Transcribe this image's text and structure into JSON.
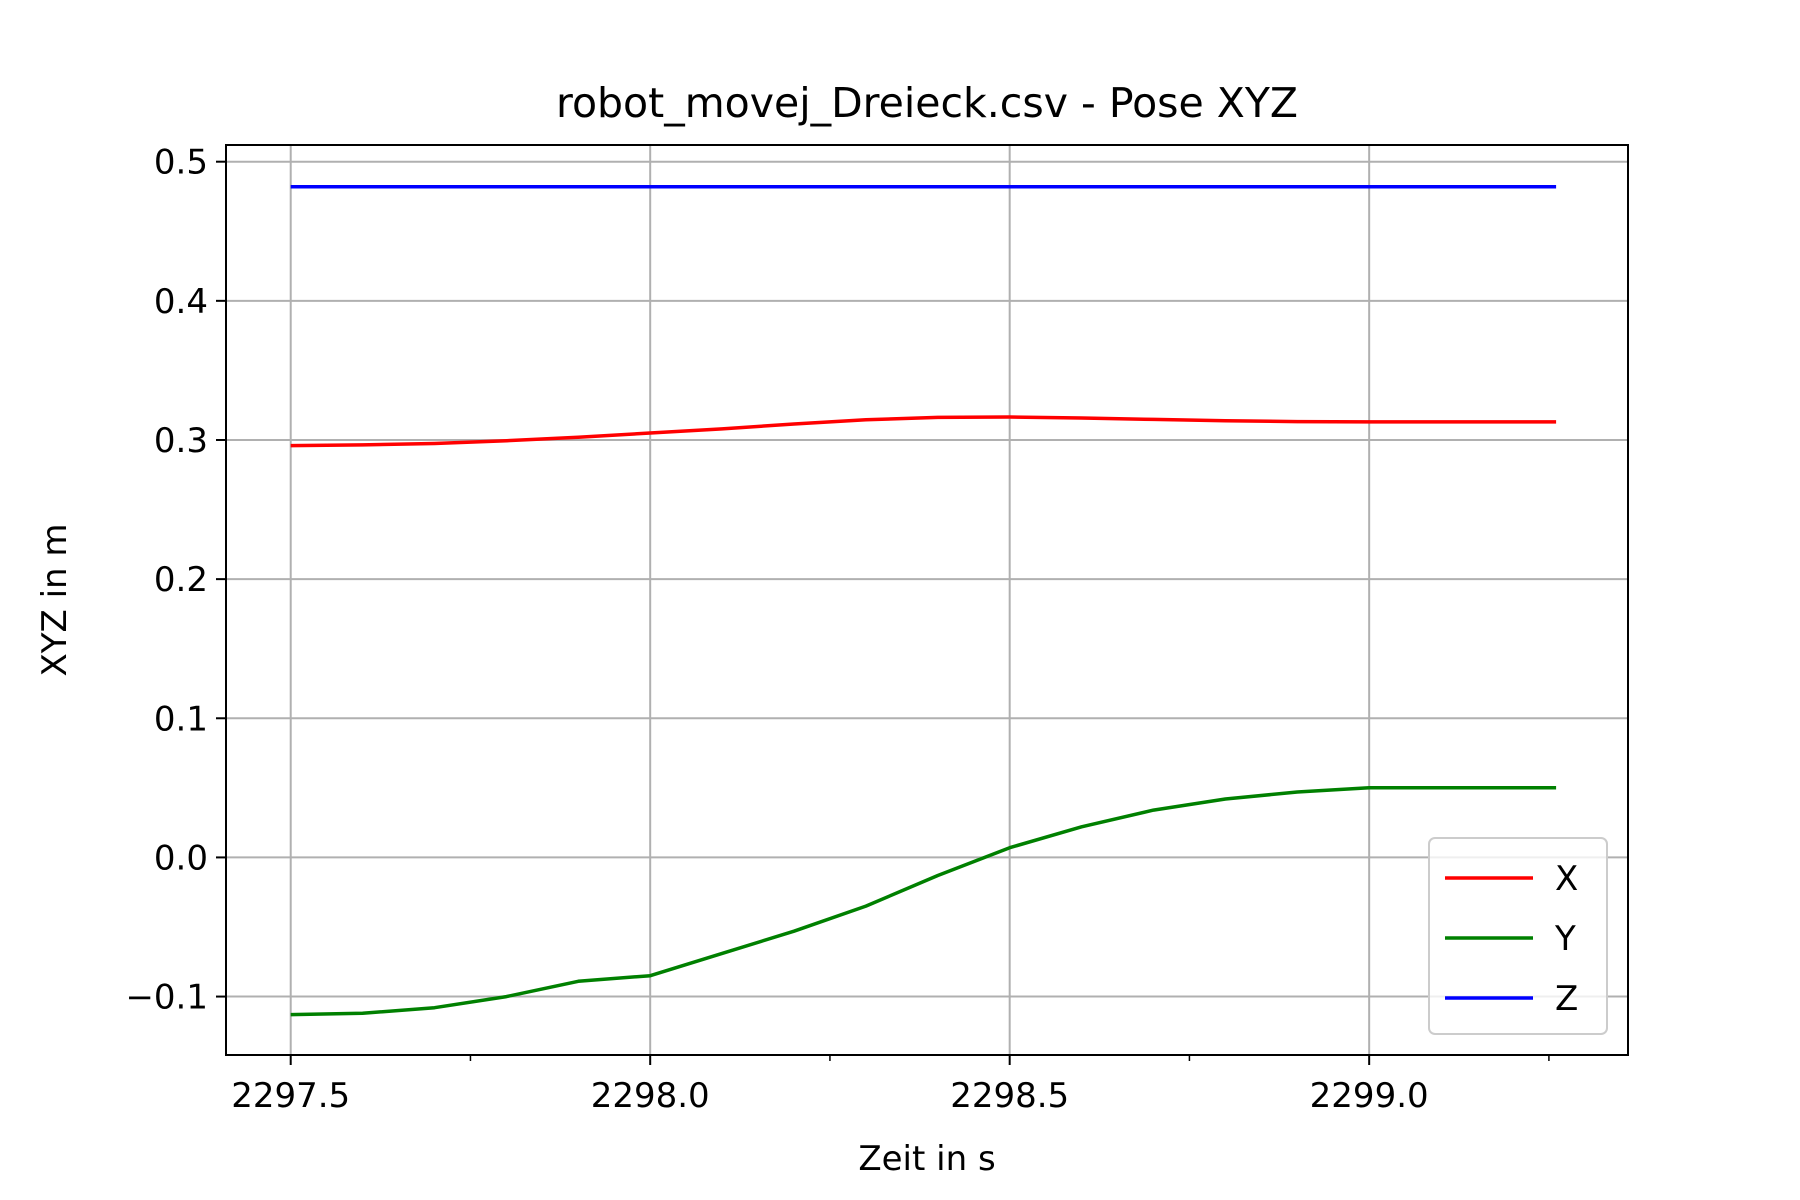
{
  "chart_data": {
    "type": "line",
    "title": "robot_movej_Dreieck.csv - Pose XYZ",
    "xlabel": "Zeit in s",
    "ylabel": "XYZ in m",
    "xlim": [
      2297.41,
      2299.36
    ],
    "ylim": [
      -0.142,
      0.512
    ],
    "xticks": [
      2297.5,
      2298.0,
      2298.5,
      2299.0
    ],
    "xtick_labels": [
      "2297.5",
      "2298.0",
      "2298.5",
      "2299.0"
    ],
    "xminor_ticks": [
      2297.75,
      2298.25,
      2298.75,
      2299.25
    ],
    "yticks": [
      -0.1,
      0.0,
      0.1,
      0.2,
      0.3,
      0.4,
      0.5
    ],
    "ytick_labels": [
      "−0.1",
      "0.0",
      "0.1",
      "0.2",
      "0.3",
      "0.4",
      "0.5"
    ],
    "grid": true,
    "legend_position": "lower-right",
    "series": [
      {
        "name": "X",
        "color": "#ff0000",
        "x": [
          2297.5,
          2297.6,
          2297.7,
          2297.8,
          2297.9,
          2298.0,
          2298.1,
          2298.2,
          2298.3,
          2298.4,
          2298.5,
          2298.6,
          2298.7,
          2298.8,
          2298.9,
          2299.0,
          2299.1,
          2299.2,
          2299.26
        ],
        "y": [
          0.296,
          0.2965,
          0.2975,
          0.2995,
          0.302,
          0.305,
          0.308,
          0.3115,
          0.3145,
          0.3162,
          0.3165,
          0.3158,
          0.3148,
          0.3138,
          0.3132,
          0.313,
          0.313,
          0.313,
          0.313
        ]
      },
      {
        "name": "Y",
        "color": "#008000",
        "x": [
          2297.5,
          2297.6,
          2297.7,
          2297.8,
          2297.9,
          2298.0,
          2298.1,
          2298.2,
          2298.3,
          2298.4,
          2298.5,
          2298.6,
          2298.7,
          2298.8,
          2298.9,
          2299.0,
          2299.1,
          2299.2,
          2299.26
        ],
        "y": [
          -0.113,
          -0.112,
          -0.108,
          -0.1,
          -0.089,
          -0.085,
          -0.069,
          -0.053,
          -0.035,
          -0.013,
          0.007,
          0.022,
          0.034,
          0.042,
          0.047,
          0.05,
          0.05,
          0.05,
          0.05
        ]
      },
      {
        "name": "Z",
        "color": "#0000ff",
        "x": [
          2297.5,
          2299.26
        ],
        "y": [
          0.482,
          0.482
        ]
      }
    ]
  }
}
